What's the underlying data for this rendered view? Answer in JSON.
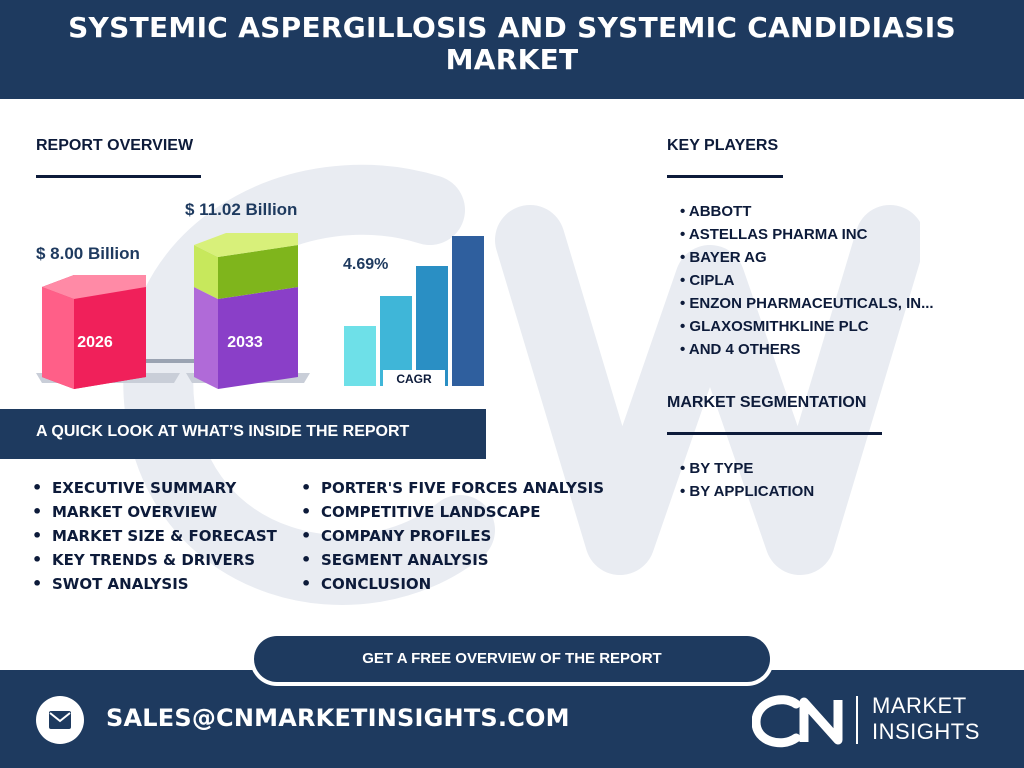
{
  "header": {
    "title": "SYSTEMIC ASPERGILLOSIS AND SYSTEMIC CANDIDIASIS MARKET"
  },
  "overview": {
    "title": "REPORT OVERVIEW",
    "value_2026": "$ 8.00 Billion",
    "value_2033": "$ 11.02 Billion",
    "year_start": "2026",
    "year_end": "2033",
    "cagr_value": "4.69%",
    "cagr_label": "CAGR"
  },
  "quick_look": {
    "title": "A QUICK LOOK AT WHAT’S INSIDE THE REPORT",
    "col1": [
      "EXECUTIVE SUMMARY",
      "MARKET OVERVIEW",
      "MARKET SIZE & FORECAST",
      "KEY TRENDS & DRIVERS",
      "SWOT ANALYSIS"
    ],
    "col2": [
      "PORTER'S FIVE FORCES ANALYSIS",
      "COMPETITIVE LANDSCAPE",
      "COMPANY PROFILES",
      "SEGMENT ANALYSIS",
      "CONCLUSION"
    ]
  },
  "key_players": {
    "title": "KEY PLAYERS",
    "items": [
      "• ABBOTT",
      "• ASTELLAS PHARMA INC",
      "• BAYER AG",
      "• CIPLA",
      "• ENZON PHARMACEUTICALS, IN...",
      "• GLAXOSMITHKLINE PLC",
      "• AND 4 OTHERS"
    ]
  },
  "segmentation": {
    "title": "MARKET SEGMENTATION",
    "items": [
      "• BY TYPE",
      "• BY APPLICATION"
    ]
  },
  "cta": {
    "label": "GET A FREE OVERVIEW OF THE REPORT"
  },
  "footer": {
    "email": "SALES@CNMARKETINSIGHTS.COM",
    "logo_line1": "MARKET",
    "logo_line2": "INSIGHTS"
  },
  "colors": {
    "navy": "#1e3a5f",
    "hex_red": "#f0205a",
    "hex_purple": "#8a3fc8",
    "hex_green": "#9ccc2a",
    "bar_light": "#6ee0e8",
    "bar_mid": "#3fb6d8",
    "bar_blue": "#2a8fc4",
    "bar_dark": "#2f5f9e"
  },
  "icons": [
    "mail-icon",
    "cn-logo-icon"
  ]
}
